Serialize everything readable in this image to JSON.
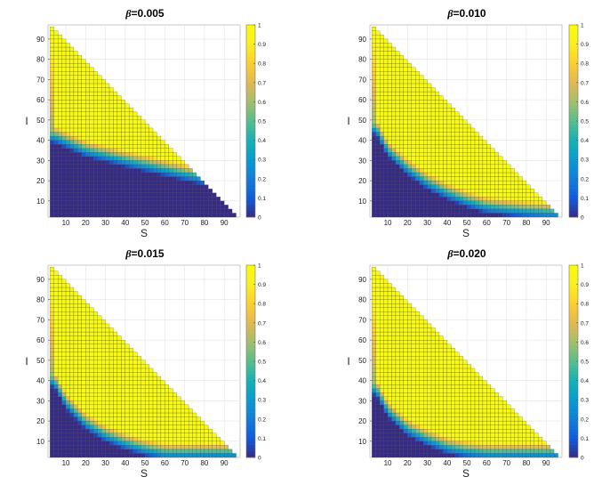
{
  "chart_data": [
    {
      "type": "heatmap",
      "title": "β=0.005",
      "title_prefix": "β",
      "title_suffix": "=0.005",
      "beta": 0.005,
      "xlabel": "S",
      "ylabel": "I",
      "x_ticks": [
        "10",
        "20",
        "30",
        "40",
        "50",
        "60",
        "70",
        "80",
        "90"
      ],
      "y_ticks": [
        "10",
        "20",
        "30",
        "40",
        "50",
        "60",
        "70",
        "80",
        "90"
      ],
      "colorbar_ticks": [
        "0",
        "0.1",
        "0.2",
        "0.3",
        "0.4",
        "0.5",
        "0.6",
        "0.7",
        "0.8",
        "0.9",
        "1"
      ],
      "xlim": [
        1,
        98
      ],
      "ylim": [
        2,
        97
      ],
      "clim": [
        0,
        1
      ],
      "colormap": "parula",
      "grid": true,
      "domain": "S + I <= 98",
      "threshold_I_vs_S": [
        [
          4,
          38
        ],
        [
          20,
          31
        ],
        [
          40,
          26
        ],
        [
          60,
          21.5
        ],
        [
          80,
          17
        ],
        [
          96,
          13
        ]
      ]
    },
    {
      "type": "heatmap",
      "title": "β=0.010",
      "title_prefix": "β",
      "title_suffix": "=0.010",
      "beta": 0.01,
      "xlabel": "S",
      "ylabel": "I",
      "x_ticks": [
        "10",
        "20",
        "30",
        "40",
        "50",
        "60",
        "70",
        "80",
        "90"
      ],
      "y_ticks": [
        "10",
        "20",
        "30",
        "40",
        "50",
        "60",
        "70",
        "80",
        "90"
      ],
      "colorbar_ticks": [
        "0",
        "0.1",
        "0.2",
        "0.3",
        "0.4",
        "0.5",
        "0.6",
        "0.7",
        "0.8",
        "0.9",
        "1"
      ],
      "xlim": [
        1,
        98
      ],
      "ylim": [
        2,
        97
      ],
      "clim": [
        0,
        1
      ],
      "colormap": "parula",
      "grid": true,
      "domain": "S + I <= 98",
      "threshold_I_vs_S": [
        [
          4,
          42
        ],
        [
          10,
          31
        ],
        [
          20,
          22
        ],
        [
          30,
          15
        ],
        [
          40,
          10
        ],
        [
          50,
          6
        ],
        [
          60,
          3
        ],
        [
          80,
          1
        ],
        [
          96,
          0
        ]
      ]
    },
    {
      "type": "heatmap",
      "title": "β=0.015",
      "title_prefix": "β",
      "title_suffix": "=0.015",
      "beta": 0.015,
      "xlabel": "S",
      "ylabel": "I",
      "x_ticks": [
        "10",
        "20",
        "30",
        "40",
        "50",
        "60",
        "70",
        "80",
        "90"
      ],
      "y_ticks": [
        "10",
        "20",
        "30",
        "40",
        "50",
        "60",
        "70",
        "80",
        "90"
      ],
      "colorbar_ticks": [
        "0",
        "0.1",
        "0.2",
        "0.3",
        "0.4",
        "0.5",
        "0.6",
        "0.7",
        "0.8",
        "0.9",
        "1"
      ],
      "xlim": [
        1,
        98
      ],
      "ylim": [
        2,
        97
      ],
      "clim": [
        0,
        1
      ],
      "colormap": "parula",
      "grid": true,
      "domain": "S + I <= 98",
      "threshold_I_vs_S": [
        [
          4,
          36
        ],
        [
          10,
          25
        ],
        [
          20,
          15
        ],
        [
          30,
          9
        ],
        [
          40,
          5
        ],
        [
          50,
          2
        ],
        [
          60,
          0
        ],
        [
          96,
          0
        ]
      ]
    },
    {
      "type": "heatmap",
      "title": "β=0.020",
      "title_prefix": "β",
      "title_suffix": "=0.020",
      "beta": 0.02,
      "xlabel": "S",
      "ylabel": "I",
      "x_ticks": [
        "10",
        "20",
        "30",
        "40",
        "50",
        "60",
        "70",
        "80",
        "90"
      ],
      "y_ticks": [
        "10",
        "20",
        "30",
        "40",
        "50",
        "60",
        "70",
        "80",
        "90"
      ],
      "colorbar_ticks": [
        "0",
        "0.1",
        "0.2",
        "0.3",
        "0.4",
        "0.5",
        "0.6",
        "0.7",
        "0.8",
        "0.9",
        "1"
      ],
      "xlim": [
        1,
        98
      ],
      "ylim": [
        2,
        97
      ],
      "clim": [
        0,
        1
      ],
      "colormap": "parula",
      "grid": true,
      "domain": "S + I <= 98",
      "threshold_I_vs_S": [
        [
          4,
          32
        ],
        [
          10,
          21
        ],
        [
          20,
          12
        ],
        [
          30,
          7
        ],
        [
          40,
          3
        ],
        [
          50,
          1
        ],
        [
          60,
          0
        ],
        [
          96,
          0
        ]
      ]
    }
  ]
}
